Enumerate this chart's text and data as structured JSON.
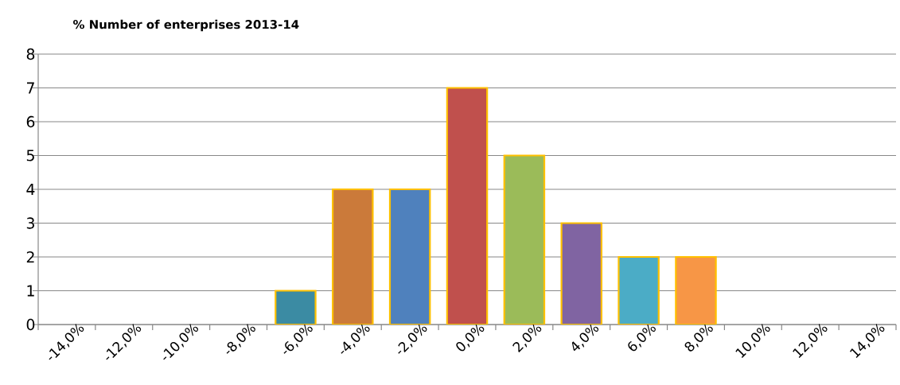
{
  "chart_data": {
    "type": "bar",
    "title": "% Number of enterprises 2013-14",
    "categories": [
      "-14,0%",
      "-12,0%",
      "-10,0%",
      "-8,0%",
      "-6,0%",
      "-4,0%",
      "-2,0%",
      "0,0%",
      "2,0%",
      "4,0%",
      "6,0%",
      "8,0%",
      "10,0%",
      "12,0%",
      "14,0%"
    ],
    "values": [
      0,
      0,
      0,
      0,
      1,
      4,
      4,
      7,
      5,
      3,
      2,
      2,
      0,
      0,
      0
    ],
    "colors": [
      "#3b8ba3",
      "#3b8ba3",
      "#3b8ba3",
      "#3b8ba3",
      "#3b8ba3",
      "#cb7a3a",
      "#4f81bd",
      "#c0504d",
      "#9bbb59",
      "#8064a2",
      "#4bacc6",
      "#f79646",
      "#3b8ba3",
      "#3b8ba3",
      "#3b8ba3"
    ],
    "ylim": [
      0,
      8
    ],
    "yticks": [
      0,
      1,
      2,
      3,
      4,
      5,
      6,
      7,
      8
    ],
    "grid": "y"
  }
}
